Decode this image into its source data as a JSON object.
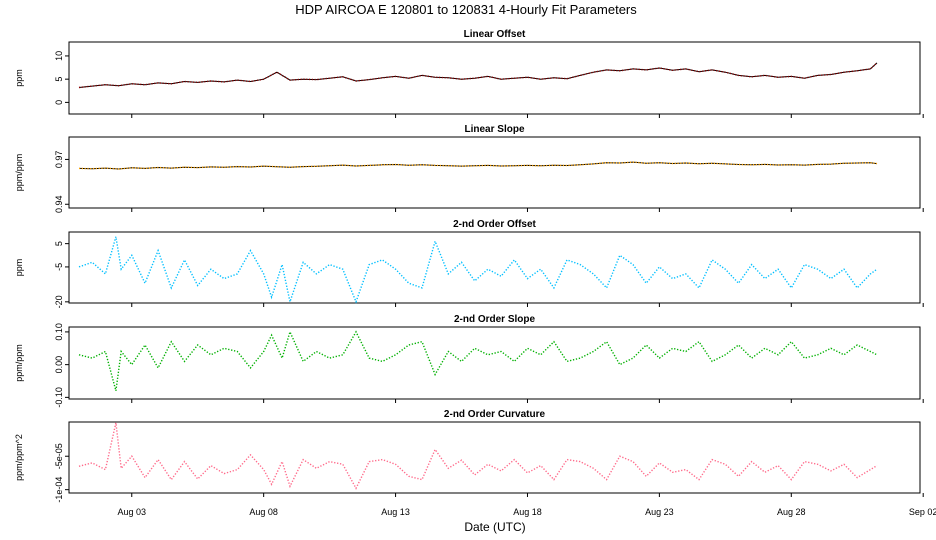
{
  "figure": {
    "title": "HDP    AIRCOA E   120801 to 120831   4-Hourly Fit Parameters",
    "xlabel": "Date (UTC)",
    "x_ticks": [
      "Aug 03",
      "Aug 08",
      "Aug 13",
      "Aug 18",
      "Aug 23",
      "Aug 28",
      "Sep 02"
    ]
  },
  "chart_data": [
    {
      "type": "line",
      "title": "Linear Offset",
      "ylabel": "ppm",
      "yticks": [
        "0",
        "5",
        "10"
      ],
      "ylim": [
        -2.5,
        13
      ],
      "x_unit": "day of August 2012 (UTC)",
      "color": "#8b0000",
      "line_color": "#000000",
      "series": [
        {
          "x": [
            1.0,
            1.5,
            2.0,
            2.5,
            3.0,
            3.5,
            4.0,
            4.5,
            5.0,
            5.5,
            6.0,
            6.5,
            7.0,
            7.5,
            8.0,
            8.5,
            9.0,
            9.5,
            10.0,
            10.5,
            11.0,
            11.5,
            12.0,
            12.5,
            13.0,
            13.5,
            14.0,
            14.5,
            15.0,
            15.5,
            16.0,
            16.5,
            17.0,
            17.5,
            18.0,
            18.5,
            19.0,
            19.5,
            20.0,
            20.5,
            21.0,
            21.5,
            22.0,
            22.5,
            23.0,
            23.5,
            24.0,
            24.5,
            25.0,
            25.5,
            26.0,
            26.5,
            27.0,
            27.5,
            28.0,
            28.5,
            29.0,
            29.5,
            30.0,
            30.5,
            31.0,
            31.25
          ],
          "y": [
            3.2,
            3.5,
            3.8,
            3.6,
            4.0,
            3.8,
            4.2,
            4.0,
            4.5,
            4.3,
            4.6,
            4.4,
            4.8,
            4.5,
            5.0,
            6.5,
            4.8,
            5.0,
            4.9,
            5.2,
            5.5,
            4.6,
            4.9,
            5.3,
            5.6,
            5.2,
            5.8,
            5.4,
            5.3,
            5.0,
            5.2,
            5.6,
            5.0,
            5.2,
            5.4,
            5.0,
            5.3,
            5.1,
            5.8,
            6.5,
            7.0,
            6.8,
            7.2,
            7.0,
            7.4,
            6.9,
            7.2,
            6.6,
            7.0,
            6.5,
            5.8,
            5.5,
            5.8,
            5.4,
            5.6,
            5.2,
            5.8,
            6.0,
            6.5,
            6.8,
            7.2,
            8.5
          ]
        }
      ]
    },
    {
      "type": "line",
      "title": "Linear Slope",
      "ylabel": "ppm/ppm",
      "yticks": [
        "0.94",
        "0.97"
      ],
      "ylim": [
        0.9375,
        0.985
      ],
      "x_unit": "day of August 2012 (UTC)",
      "color": "#ffa500",
      "line_color": "#000000",
      "series": [
        {
          "x": [
            1.0,
            1.5,
            2.0,
            2.5,
            3.0,
            3.5,
            4.0,
            4.5,
            5.0,
            5.5,
            6.0,
            6.5,
            7.0,
            7.5,
            8.0,
            8.5,
            9.0,
            9.5,
            10.0,
            10.5,
            11.0,
            11.5,
            12.0,
            12.5,
            13.0,
            13.5,
            14.0,
            14.5,
            15.0,
            15.5,
            16.0,
            16.5,
            17.0,
            17.5,
            18.0,
            18.5,
            19.0,
            19.5,
            20.0,
            20.5,
            21.0,
            21.5,
            22.0,
            22.5,
            23.0,
            23.5,
            24.0,
            24.5,
            25.0,
            25.5,
            26.0,
            26.5,
            27.0,
            27.5,
            28.0,
            28.5,
            29.0,
            29.5,
            30.0,
            30.5,
            31.0,
            31.25
          ],
          "y": [
            0.964,
            0.9638,
            0.9642,
            0.9636,
            0.9644,
            0.964,
            0.9646,
            0.9642,
            0.9648,
            0.9645,
            0.965,
            0.9647,
            0.9652,
            0.9649,
            0.9655,
            0.9651,
            0.9648,
            0.9652,
            0.9654,
            0.9658,
            0.9662,
            0.9656,
            0.966,
            0.9664,
            0.9666,
            0.9661,
            0.9664,
            0.966,
            0.9658,
            0.9655,
            0.9657,
            0.966,
            0.9656,
            0.9658,
            0.966,
            0.9657,
            0.9661,
            0.9659,
            0.9664,
            0.967,
            0.9678,
            0.9676,
            0.9682,
            0.9674,
            0.9678,
            0.9673,
            0.9676,
            0.9671,
            0.9674,
            0.967,
            0.9666,
            0.9664,
            0.9667,
            0.9663,
            0.9665,
            0.9662,
            0.9667,
            0.9669,
            0.9674,
            0.9676,
            0.9678,
            0.9672
          ]
        }
      ]
    },
    {
      "type": "line",
      "title": "2-nd Order Offset",
      "ylabel": "ppm",
      "yticks": [
        "-20",
        "-5",
        "5"
      ],
      "ylim": [
        -20.5,
        10
      ],
      "x_unit": "day of August 2012 (UTC)",
      "color": "#00bfff",
      "series": [
        {
          "x": [
            1.0,
            1.5,
            2.0,
            2.4,
            2.6,
            3.0,
            3.5,
            4.0,
            4.5,
            5.0,
            5.5,
            6.0,
            6.5,
            7.0,
            7.5,
            8.0,
            8.3,
            8.7,
            9.0,
            9.5,
            10.0,
            10.5,
            11.0,
            11.5,
            12.0,
            12.5,
            13.0,
            13.5,
            14.0,
            14.5,
            15.0,
            15.5,
            16.0,
            16.5,
            17.0,
            17.5,
            18.0,
            18.5,
            19.0,
            19.5,
            20.0,
            20.5,
            21.0,
            21.5,
            22.0,
            22.5,
            23.0,
            23.5,
            24.0,
            24.5,
            25.0,
            25.5,
            26.0,
            26.5,
            27.0,
            27.5,
            28.0,
            28.5,
            29.0,
            29.5,
            30.0,
            30.5,
            31.0,
            31.25
          ],
          "y": [
            -5,
            -3,
            -8,
            8,
            -6,
            0,
            -12,
            2,
            -14,
            -2,
            -13,
            -6,
            -10,
            -8,
            2,
            -8,
            -18,
            -4,
            -20,
            -3,
            -8,
            -4,
            -6,
            -20,
            -4,
            -2,
            -6,
            -12,
            -14,
            6,
            -8,
            -3,
            -11,
            -6,
            -9,
            -2,
            -10,
            -6,
            -14,
            -2,
            -4,
            -8,
            -14,
            0,
            -4,
            -12,
            -5,
            -10,
            -8,
            -14,
            -2,
            -6,
            -12,
            -4,
            -10,
            -6,
            -14,
            -4,
            -6,
            -10,
            -6,
            -14,
            -8,
            -6
          ]
        }
      ]
    },
    {
      "type": "line",
      "title": "2-nd Order Slope",
      "ylabel": "ppm/ppm",
      "yticks": [
        "-0.10",
        "0.00",
        "0.10"
      ],
      "ylim": [
        -0.105,
        0.115
      ],
      "x_unit": "day of August 2012 (UTC)",
      "color": "#00b000",
      "series": [
        {
          "x": [
            1.0,
            1.5,
            2.0,
            2.4,
            2.6,
            3.0,
            3.5,
            4.0,
            4.5,
            5.0,
            5.5,
            6.0,
            6.5,
            7.0,
            7.5,
            8.0,
            8.3,
            8.7,
            9.0,
            9.5,
            10.0,
            10.5,
            11.0,
            11.5,
            12.0,
            12.5,
            13.0,
            13.5,
            14.0,
            14.5,
            15.0,
            15.5,
            16.0,
            16.5,
            17.0,
            17.5,
            18.0,
            18.5,
            19.0,
            19.5,
            20.0,
            20.5,
            21.0,
            21.5,
            22.0,
            22.5,
            23.0,
            23.5,
            24.0,
            24.5,
            25.0,
            25.5,
            26.0,
            26.5,
            27.0,
            27.5,
            28.0,
            28.5,
            29.0,
            29.5,
            30.0,
            30.5,
            31.0,
            31.25
          ],
          "y": [
            0.03,
            0.02,
            0.04,
            -0.08,
            0.04,
            0.0,
            0.06,
            -0.01,
            0.07,
            0.01,
            0.06,
            0.03,
            0.05,
            0.04,
            -0.01,
            0.04,
            0.09,
            0.02,
            0.1,
            0.01,
            0.04,
            0.02,
            0.03,
            0.1,
            0.02,
            0.01,
            0.03,
            0.06,
            0.07,
            -0.03,
            0.04,
            0.01,
            0.05,
            0.03,
            0.04,
            0.01,
            0.05,
            0.03,
            0.07,
            0.01,
            0.02,
            0.04,
            0.07,
            0.0,
            0.02,
            0.06,
            0.02,
            0.05,
            0.04,
            0.07,
            0.01,
            0.03,
            0.06,
            0.02,
            0.05,
            0.03,
            0.07,
            0.02,
            0.03,
            0.05,
            0.03,
            0.06,
            0.04,
            0.03
          ]
        }
      ]
    },
    {
      "type": "line",
      "title": "2-nd Order Curvature",
      "ylabel": "ppm/ppm^2",
      "yticks": [
        "-1e-04",
        "-5e-05"
      ],
      "ylim": [
        -0.000105,
        1.2e-06
      ],
      "x_unit": "day of August 2012 (UTC)",
      "color": "#ff6a8a",
      "series": [
        {
          "x": [
            1.0,
            1.5,
            2.0,
            2.4,
            2.6,
            3.0,
            3.5,
            4.0,
            4.5,
            5.0,
            5.5,
            6.0,
            6.5,
            7.0,
            7.5,
            8.0,
            8.3,
            8.7,
            9.0,
            9.5,
            10.0,
            10.5,
            11.0,
            11.5,
            12.0,
            12.5,
            13.0,
            13.5,
            14.0,
            14.5,
            15.0,
            15.5,
            16.0,
            16.5,
            17.0,
            17.5,
            18.0,
            18.5,
            19.0,
            19.5,
            20.0,
            20.5,
            21.0,
            21.5,
            22.0,
            22.5,
            23.0,
            23.5,
            24.0,
            24.5,
            25.0,
            25.5,
            26.0,
            26.5,
            27.0,
            27.5,
            28.0,
            28.5,
            29.0,
            29.5,
            30.0,
            30.5,
            31.0,
            31.25
          ],
          "y": [
            -6.5e-05,
            -6e-05,
            -7e-05,
            0.0,
            -6.8e-05,
            -5e-05,
            -8.2e-05,
            -5.5e-05,
            -8.5e-05,
            -5.8e-05,
            -8.4e-05,
            -6.4e-05,
            -7.6e-05,
            -7e-05,
            -4.8e-05,
            -7e-05,
            -9.2e-05,
            -5.8e-05,
            -9.5e-05,
            -5.5e-05,
            -6.8e-05,
            -5.8e-05,
            -6.2e-05,
            -9.8e-05,
            -5.8e-05,
            -5.5e-05,
            -6.2e-05,
            -8e-05,
            -8.5e-05,
            -4e-05,
            -6.8e-05,
            -5.6e-05,
            -7.8e-05,
            -6.2e-05,
            -7.2e-05,
            -5.5e-05,
            -7.5e-05,
            -6.4e-05,
            -8.5e-05,
            -5.5e-05,
            -5.8e-05,
            -6.8e-05,
            -8.5e-05,
            -5e-05,
            -5.8e-05,
            -8e-05,
            -6e-05,
            -7.4e-05,
            -7e-05,
            -8.5e-05,
            -5.5e-05,
            -6.2e-05,
            -8e-05,
            -5.8e-05,
            -7.4e-05,
            -6.4e-05,
            -8.5e-05,
            -5.8e-05,
            -6.2e-05,
            -7.2e-05,
            -6.2e-05,
            -8.2e-05,
            -7e-05,
            -6.4e-05
          ]
        }
      ]
    }
  ]
}
